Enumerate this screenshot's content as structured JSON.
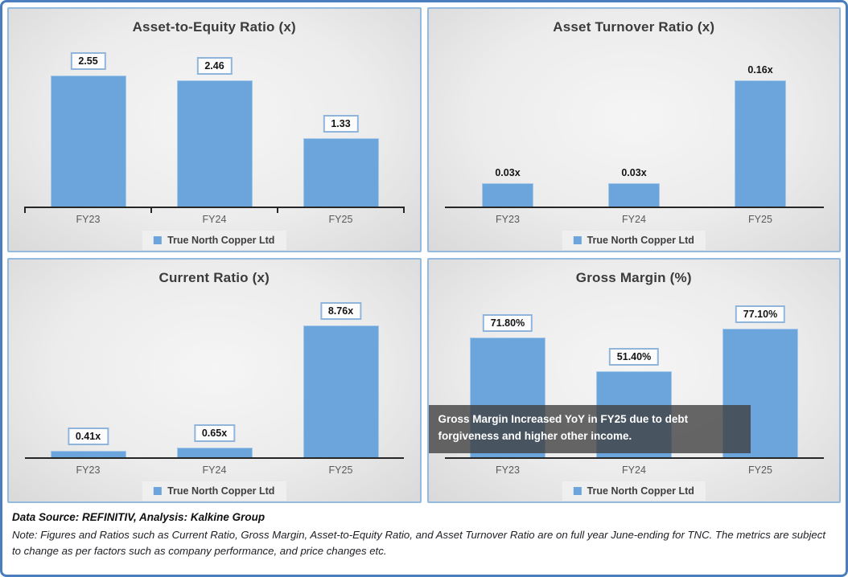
{
  "colors": {
    "bar_fill": "#6CA5DC",
    "bar_border": "#A5C8E9",
    "panel_border": "#94BBDF",
    "outer_border": "#4A7DBE",
    "axis": "#262626",
    "label_box_border": "#8FB5DC",
    "annotation_bg": "rgba(62,62,62,0.78)",
    "legend_bg": "#EFEFEF"
  },
  "chart_data": [
    {
      "type": "bar",
      "title": "Asset-to-Equity Ratio (x)",
      "categories": [
        "FY23",
        "FY24",
        "FY25"
      ],
      "series": [
        {
          "name": "True North Copper Ltd",
          "values": [
            2.55,
            2.46,
            1.33
          ]
        }
      ],
      "data_labels": [
        "2.55",
        "2.46",
        "1.33"
      ],
      "labels_boxed": true,
      "axis_ticks": true,
      "legend_position": "bottom"
    },
    {
      "type": "bar",
      "title": "Asset Turnover Ratio (x)",
      "categories": [
        "FY23",
        "FY24",
        "FY25"
      ],
      "series": [
        {
          "name": "True North Copper Ltd",
          "values": [
            0.03,
            0.03,
            0.16
          ]
        }
      ],
      "data_labels": [
        "0.03x",
        "0.03x",
        "0.16x"
      ],
      "labels_boxed": false,
      "axis_ticks": false,
      "legend_position": "bottom"
    },
    {
      "type": "bar",
      "title": "Current Ratio (x)",
      "categories": [
        "FY23",
        "FY24",
        "FY25"
      ],
      "series": [
        {
          "name": "True North Copper Ltd",
          "values": [
            0.41,
            0.65,
            8.76
          ]
        }
      ],
      "data_labels": [
        "0.41x",
        "0.65x",
        "8.76x"
      ],
      "labels_boxed": true,
      "axis_ticks": false,
      "legend_position": "bottom"
    },
    {
      "type": "bar",
      "title": "Gross Margin (%)",
      "categories": [
        "FY23",
        "FY24",
        "FY25"
      ],
      "series": [
        {
          "name": "True North Copper Ltd",
          "values": [
            71.8,
            51.4,
            77.1
          ]
        }
      ],
      "data_labels": [
        "71.80%",
        "51.40%",
        "77.10%"
      ],
      "labels_boxed": true,
      "axis_ticks": false,
      "legend_position": "bottom",
      "annotation": "Gross Margin Increased YoY in FY25 due to debt forgiveness and higher other income."
    }
  ],
  "footer": {
    "source": "Data Source: REFINITIV, Analysis: Kalkine Group",
    "note": "Note: Figures and Ratios such as Current Ratio, Gross Margin, Asset-to-Equity Ratio, and Asset Turnover Ratio  are on full year June-ending for TNC. The metrics are subject to change as per factors such as company performance, and price changes etc."
  }
}
